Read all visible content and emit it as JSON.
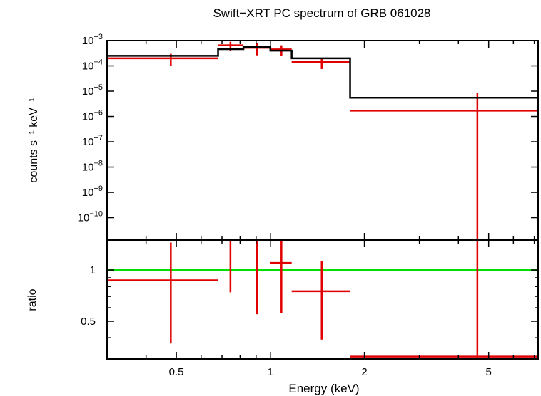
{
  "chart_data": {
    "type": "scatter",
    "title": "Swift−XRT PC spectrum of GRB 061028",
    "xlabel": "Energy (keV)",
    "x_scale": "log",
    "xlim": [
      0.3,
      7.2
    ],
    "x_ticks": [
      0.5,
      1,
      2,
      5
    ],
    "x_tick_labels": [
      "0.5",
      "1",
      "2",
      "5"
    ],
    "colors": {
      "data": "#e00000",
      "model": "#000000",
      "unity": "#00e000",
      "frame": "#000000"
    },
    "panels": [
      {
        "name": "spectrum",
        "ylabel": "counts s⁻¹ keV⁻¹",
        "y_scale": "log",
        "ylim": [
          1.3e-11,
          0.001
        ],
        "y_ticks": [
          0.001,
          0.0001,
          1e-05,
          1e-06,
          1e-07,
          1e-08,
          1e-09,
          1e-10
        ],
        "y_tick_labels": [
          {
            "base": "10",
            "exp": "−3"
          },
          {
            "base": "10",
            "exp": "−4"
          },
          {
            "base": "10",
            "exp": "−5"
          },
          {
            "base": "10",
            "exp": "−6"
          },
          {
            "base": "10",
            "exp": "−7"
          },
          {
            "base": "10",
            "exp": "−8"
          },
          {
            "base": "10",
            "exp": "−9"
          },
          {
            "base": "10",
            "exp": "−10"
          }
        ],
        "data_points": [
          {
            "x": 0.48,
            "xlo": 0.3,
            "xhi": 0.68,
            "y": 0.0002,
            "ylo": 0.0001,
            "yhi": 0.0003
          },
          {
            "x": 0.745,
            "xlo": 0.68,
            "xhi": 0.82,
            "y": 0.00065,
            "ylo": 0.0004,
            "yhi": 0.0009
          },
          {
            "x": 0.905,
            "xlo": 0.82,
            "xhi": 1.0,
            "y": 0.00052,
            "ylo": 0.00026,
            "yhi": 0.0008
          },
          {
            "x": 1.085,
            "xlo": 1.0,
            "xhi": 1.17,
            "y": 0.00045,
            "ylo": 0.00024,
            "yhi": 0.00065
          },
          {
            "x": 1.46,
            "xlo": 1.17,
            "xhi": 1.8,
            "y": 0.000145,
            "ylo": 7.5e-05,
            "yhi": 0.00021
          },
          {
            "x": 4.6,
            "xlo": 1.8,
            "xhi": 7.2,
            "y": 1.7e-06,
            "ylo": 1.3e-11,
            "yhi": 8.5e-06
          }
        ],
        "model_steps": [
          {
            "xlo": 0.3,
            "xhi": 0.68,
            "y": 0.00025
          },
          {
            "xlo": 0.68,
            "xhi": 0.82,
            "y": 0.00046
          },
          {
            "xlo": 0.82,
            "xhi": 1.0,
            "y": 0.00056
          },
          {
            "xlo": 1.0,
            "xhi": 1.17,
            "y": 0.0004
          },
          {
            "xlo": 1.17,
            "xhi": 1.8,
            "y": 0.0002
          },
          {
            "xlo": 1.8,
            "xhi": 7.2,
            "y": 5.5e-06
          }
        ]
      },
      {
        "name": "ratio",
        "ylabel": "ratio",
        "y_scale": "log",
        "ylim": [
          0.3,
          1.5
        ],
        "y_ticks": [
          0.5,
          1
        ],
        "y_tick_labels": [
          "0.5",
          "1"
        ],
        "unity_line": 1,
        "data_points": [
          {
            "x": 0.48,
            "xlo": 0.3,
            "xhi": 0.68,
            "y": 0.87,
            "ylo": 0.37,
            "yhi": 1.45
          },
          {
            "x": 0.745,
            "xlo": 0.68,
            "xhi": 0.82,
            "y": 1.5,
            "ylo": 0.74,
            "yhi": 1.5
          },
          {
            "x": 0.905,
            "xlo": 0.82,
            "xhi": 1.0,
            "y": 1.5,
            "ylo": 0.55,
            "yhi": 1.5
          },
          {
            "x": 1.085,
            "xlo": 1.0,
            "xhi": 1.17,
            "y": 1.1,
            "ylo": 0.56,
            "yhi": 1.5
          },
          {
            "x": 1.46,
            "xlo": 1.17,
            "xhi": 1.8,
            "y": 0.75,
            "ylo": 0.39,
            "yhi": 1.13
          },
          {
            "x": 4.6,
            "xlo": 1.8,
            "xhi": 7.2,
            "y": 0.31,
            "ylo": 0.3,
            "yhi": 1.5
          }
        ]
      }
    ]
  }
}
